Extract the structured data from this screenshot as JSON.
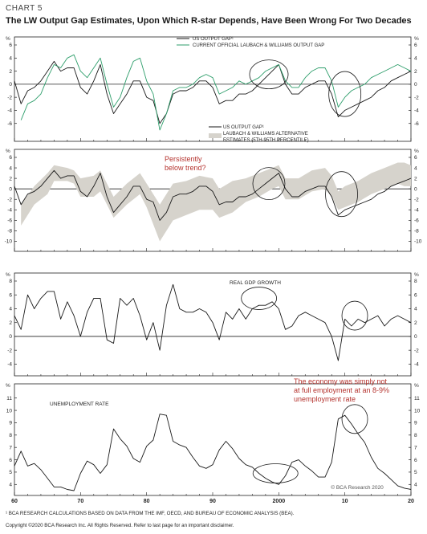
{
  "header": {
    "chart_label": "CHART 5",
    "title": "The LW Output Gap Estimates, Upon Which R-star Depends, Have Been Wrong For Two Decades"
  },
  "footer": {
    "footnote": "¹ BCA RESEARCH CALCULATIONS BASED ON DATA FROM THE IMF, OECD, AND BUREAU OF ECONOMIC ANALYSIS (BEA).",
    "copyright": "Copyright ©2020 BCA Research Inc. All Rights Reserved. Refer to last page for an important disclaimer.",
    "watermark": "© BCA Research 2020"
  },
  "colors": {
    "black_line": "#1a1a1a",
    "green_line": "#2e9e6b",
    "band_fill": "#d6d3cc",
    "annotation_red": "#b5332e",
    "axis": "#222222"
  },
  "chart_data": [
    {
      "type": "line",
      "unit": "%",
      "ylim": [
        -8,
        6
      ],
      "yticks": [
        6,
        4,
        2,
        0,
        -2,
        -4,
        -6
      ],
      "xlim": [
        1960,
        2020
      ],
      "legend": [
        {
          "label": "US OUTPUT GAP¹",
          "color": "#1a1a1a"
        },
        {
          "label": "CURRENT OFFICIAL LAUBACH & WILLIAMS OUTPUT GAP",
          "color": "#2e9e6b"
        }
      ],
      "series": [
        {
          "name": "US OUTPUT GAP¹",
          "color": "#1a1a1a",
          "x": [
            1960,
            1961,
            1962,
            1963,
            1964,
            1965,
            1966,
            1967,
            1968,
            1969,
            1970,
            1971,
            1972,
            1973,
            1974,
            1975,
            1976,
            1977,
            1978,
            1979,
            1980,
            1981,
            1982,
            1983,
            1984,
            1985,
            1986,
            1987,
            1988,
            1989,
            1990,
            1991,
            1992,
            1993,
            1994,
            1995,
            1996,
            1997,
            1998,
            1999,
            2000,
            2001,
            2002,
            2003,
            2004,
            2005,
            2006,
            2007,
            2008,
            2009,
            2010,
            2011,
            2012,
            2013,
            2014,
            2015,
            2016,
            2017,
            2018,
            2019,
            2020
          ],
          "y": [
            0.5,
            -3.0,
            -1.0,
            -0.5,
            0.5,
            2.0,
            3.5,
            2.0,
            2.5,
            2.5,
            -0.5,
            -1.5,
            0.5,
            3.0,
            -1.5,
            -4.5,
            -3.0,
            -1.5,
            0.5,
            0.5,
            -2.0,
            -2.5,
            -6.0,
            -4.5,
            -1.5,
            -1.0,
            -1.0,
            -0.5,
            0.5,
            0.5,
            -0.5,
            -3.0,
            -2.5,
            -2.5,
            -1.5,
            -1.5,
            -1.0,
            0.0,
            1.0,
            2.0,
            3.0,
            0.0,
            -1.5,
            -1.5,
            -0.5,
            0.0,
            0.5,
            0.5,
            -1.5,
            -5.0,
            -4.0,
            -3.5,
            -3.0,
            -2.5,
            -2.0,
            -1.0,
            -0.5,
            0.5,
            1.0,
            1.5,
            2.0
          ]
        },
        {
          "name": "CURRENT OFFICIAL LAUBACH & WILLIAMS OUTPUT GAP",
          "color": "#2e9e6b",
          "x": [
            1961,
            1962,
            1963,
            1964,
            1965,
            1966,
            1967,
            1968,
            1969,
            1970,
            1971,
            1972,
            1973,
            1974,
            1975,
            1976,
            1977,
            1978,
            1979,
            1980,
            1981,
            1982,
            1983,
            1984,
            1985,
            1986,
            1987,
            1988,
            1989,
            1990,
            1991,
            1992,
            1993,
            1994,
            1995,
            1996,
            1997,
            1998,
            1999,
            2000,
            2001,
            2002,
            2003,
            2004,
            2005,
            2006,
            2007,
            2008,
            2009,
            2010,
            2011,
            2012,
            2013,
            2014,
            2015,
            2016,
            2017,
            2018,
            2019,
            2020
          ],
          "y": [
            -5.5,
            -3.0,
            -2.5,
            -1.5,
            1.0,
            3.0,
            2.5,
            4.0,
            4.5,
            2.0,
            1.0,
            2.5,
            4.0,
            0.0,
            -3.5,
            -2.0,
            1.0,
            3.5,
            4.0,
            0.5,
            -1.5,
            -7.0,
            -4.5,
            -1.0,
            -0.5,
            -0.5,
            0.0,
            1.0,
            1.5,
            1.0,
            -1.5,
            -1.0,
            -0.5,
            0.5,
            0.0,
            0.5,
            1.0,
            2.0,
            2.5,
            3.0,
            0.5,
            -0.5,
            -0.5,
            1.0,
            2.0,
            2.5,
            2.5,
            0.5,
            -3.5,
            -2.0,
            -1.0,
            -0.5,
            0.0,
            1.0,
            1.5,
            2.0,
            2.5,
            3.0,
            2.5,
            2.0
          ]
        }
      ],
      "annotation_circles": [
        {
          "x": 1998.5,
          "y": 1.5
        },
        {
          "x": 2010,
          "y": -1.5
        }
      ]
    },
    {
      "type": "area",
      "unit": "%",
      "ylim": [
        -11,
        6
      ],
      "yticks": [
        6,
        4,
        2,
        0,
        -2,
        -4,
        -6,
        -8,
        -10
      ],
      "xlim": [
        1960,
        2020
      ],
      "legend": [
        {
          "label": "US OUTPUT GAP¹",
          "color": "#1a1a1a"
        },
        {
          "label": "LAUBACH & WILLIAMS ALTERNATIVE",
          "color": "#d6d3cc"
        },
        {
          "label": "ESTIMATES (5TH-95TH PERCENTILE)",
          "color": "#d6d3cc"
        }
      ],
      "annotation_text": [
        "Persistently",
        "below trend?"
      ],
      "band": {
        "x": [
          1961,
          1963,
          1965,
          1966,
          1968,
          1969,
          1970,
          1972,
          1973,
          1974,
          1975,
          1977,
          1979,
          1980,
          1982,
          1984,
          1986,
          1988,
          1990,
          1991,
          1993,
          1995,
          1997,
          1999,
          2000,
          2001,
          2003,
          2005,
          2007,
          2008,
          2009,
          2010,
          2012,
          2014,
          2016,
          2018,
          2019,
          2020
        ],
        "lower": [
          -7.0,
          -3.0,
          -1.0,
          1.5,
          1.5,
          1.0,
          -1.5,
          -1.5,
          -0.5,
          -3.0,
          -5.5,
          -3.0,
          -1.0,
          -3.5,
          -10.0,
          -6.0,
          -5.0,
          -4.0,
          -4.0,
          -5.5,
          -4.5,
          -2.5,
          -1.5,
          0.0,
          0.5,
          -2.0,
          -2.0,
          -0.5,
          0.0,
          -1.5,
          -4.0,
          -3.5,
          -2.5,
          -1.0,
          0.0,
          1.0,
          0.5,
          0.5
        ],
        "upper": [
          -3.0,
          0.5,
          3.0,
          4.5,
          4.0,
          3.5,
          2.0,
          2.5,
          3.5,
          1.0,
          -1.5,
          1.0,
          3.0,
          1.0,
          -3.0,
          1.0,
          1.5,
          2.5,
          2.0,
          0.0,
          1.5,
          2.0,
          3.0,
          4.0,
          4.5,
          2.0,
          2.0,
          3.5,
          4.0,
          2.5,
          -0.5,
          0.5,
          1.5,
          3.0,
          4.0,
          5.0,
          5.0,
          4.5
        ]
      },
      "series": [
        {
          "name": "US OUTPUT GAP¹",
          "color": "#1a1a1a",
          "x": [
            1960,
            1961,
            1962,
            1963,
            1964,
            1965,
            1966,
            1967,
            1968,
            1969,
            1970,
            1971,
            1972,
            1973,
            1974,
            1975,
            1976,
            1977,
            1978,
            1979,
            1980,
            1981,
            1982,
            1983,
            1984,
            1985,
            1986,
            1987,
            1988,
            1989,
            1990,
            1991,
            1992,
            1993,
            1994,
            1995,
            1996,
            1997,
            1998,
            1999,
            2000,
            2001,
            2002,
            2003,
            2004,
            2005,
            2006,
            2007,
            2008,
            2009,
            2010,
            2011,
            2012,
            2013,
            2014,
            2015,
            2016,
            2017,
            2018,
            2019,
            2020
          ],
          "y": [
            0.5,
            -3.0,
            -1.0,
            -0.5,
            0.5,
            2.0,
            3.5,
            2.0,
            2.5,
            2.5,
            -0.5,
            -1.5,
            0.5,
            3.0,
            -1.5,
            -4.5,
            -3.0,
            -1.5,
            0.5,
            0.5,
            -2.0,
            -2.5,
            -6.0,
            -4.5,
            -1.5,
            -1.0,
            -1.0,
            -0.5,
            0.5,
            0.5,
            -0.5,
            -3.0,
            -2.5,
            -2.5,
            -1.5,
            -1.5,
            -1.0,
            0.0,
            1.0,
            2.0,
            3.0,
            0.0,
            -1.5,
            -1.5,
            -0.5,
            0.0,
            0.5,
            0.5,
            -1.5,
            -5.0,
            -4.0,
            -3.5,
            -3.0,
            -2.5,
            -2.0,
            -1.0,
            -0.5,
            0.5,
            1.0,
            1.5,
            2.0
          ]
        }
      ],
      "annotation_circles": [
        {
          "x": 1998.5,
          "y": 1.0
        },
        {
          "x": 2009.5,
          "y": -1.0
        }
      ]
    },
    {
      "type": "line",
      "unit": "%",
      "ylim": [
        -5,
        8
      ],
      "yticks": [
        8,
        6,
        4,
        2,
        0,
        -2,
        -4
      ],
      "xlim": [
        1960,
        2020
      ],
      "series_label": "REAL GDP GROWTH",
      "series": [
        {
          "name": "REAL GDP GROWTH",
          "color": "#1a1a1a",
          "x": [
            1960,
            1961,
            1962,
            1963,
            1964,
            1965,
            1966,
            1967,
            1968,
            1969,
            1970,
            1971,
            1972,
            1973,
            1974,
            1975,
            1976,
            1977,
            1978,
            1979,
            1980,
            1981,
            1982,
            1983,
            1984,
            1985,
            1986,
            1987,
            1988,
            1989,
            1990,
            1991,
            1992,
            1993,
            1994,
            1995,
            1996,
            1997,
            1998,
            1999,
            2000,
            2001,
            2002,
            2003,
            2004,
            2005,
            2006,
            2007,
            2008,
            2009,
            2010,
            2011,
            2012,
            2013,
            2014,
            2015,
            2016,
            2017,
            2018,
            2019,
            2020
          ],
          "y": [
            3.0,
            1.0,
            6.0,
            4.0,
            5.5,
            6.5,
            6.5,
            2.5,
            5.0,
            3.0,
            0.0,
            3.5,
            5.5,
            5.5,
            -0.5,
            -1.0,
            5.5,
            4.5,
            5.5,
            3.0,
            -0.5,
            2.0,
            -2.0,
            4.5,
            7.5,
            4.0,
            3.5,
            3.5,
            4.0,
            3.5,
            2.0,
            -0.5,
            3.5,
            2.5,
            4.0,
            2.5,
            4.0,
            4.5,
            4.5,
            5.0,
            4.0,
            1.0,
            1.5,
            3.0,
            3.5,
            3.0,
            2.5,
            2.0,
            0.0,
            -3.5,
            2.5,
            1.5,
            2.5,
            2.0,
            2.5,
            3.0,
            1.5,
            2.5,
            3.0,
            2.5,
            2.0
          ]
        }
      ],
      "annotation_circles": [
        {
          "x": 1997,
          "y": 5.5
        },
        {
          "x": 2011.5,
          "y": 3.0
        }
      ]
    },
    {
      "type": "line",
      "unit": "%",
      "ylim": [
        3.5,
        11.5
      ],
      "yticks": [
        11,
        10,
        9,
        8,
        7,
        6,
        5,
        4
      ],
      "xlim": [
        1960,
        2020
      ],
      "xticks": [
        1960,
        1970,
        1980,
        1990,
        2000,
        2010,
        2020
      ],
      "xticklabels": [
        "60",
        "70",
        "80",
        "90",
        "2000",
        "10",
        "20"
      ],
      "series_label": "UNEMPLOYMENT RATE",
      "annotation_text": [
        "The economy was simply not",
        "at full employment at an 8-9%",
        "unemployment rate"
      ],
      "series": [
        {
          "name": "UNEMPLOYMENT RATE",
          "color": "#1a1a1a",
          "x": [
            1960,
            1961,
            1962,
            1963,
            1964,
            1965,
            1966,
            1967,
            1968,
            1969,
            1970,
            1971,
            1972,
            1973,
            1974,
            1975,
            1976,
            1977,
            1978,
            1979,
            1980,
            1981,
            1982,
            1983,
            1984,
            1985,
            1986,
            1987,
            1988,
            1989,
            1990,
            1991,
            1992,
            1993,
            1994,
            1995,
            1996,
            1997,
            1998,
            1999,
            2000,
            2001,
            2002,
            2003,
            2004,
            2005,
            2006,
            2007,
            2008,
            2009,
            2010,
            2011,
            2012,
            2013,
            2014,
            2015,
            2016,
            2017,
            2018,
            2019,
            2020
          ],
          "y": [
            5.5,
            6.7,
            5.5,
            5.7,
            5.2,
            4.5,
            3.8,
            3.8,
            3.6,
            3.5,
            4.9,
            5.9,
            5.6,
            4.9,
            5.6,
            8.5,
            7.7,
            7.1,
            6.1,
            5.8,
            7.1,
            7.6,
            9.7,
            9.6,
            7.5,
            7.2,
            7.0,
            6.2,
            5.5,
            5.3,
            5.6,
            6.8,
            7.5,
            6.9,
            6.1,
            5.6,
            5.4,
            4.9,
            4.5,
            4.2,
            4.0,
            4.7,
            5.8,
            6.0,
            5.5,
            5.1,
            4.6,
            4.6,
            5.8,
            9.3,
            9.6,
            8.9,
            8.1,
            7.4,
            6.2,
            5.3,
            4.9,
            4.4,
            3.9,
            3.7,
            3.6
          ]
        }
      ],
      "annotation_circles": [
        {
          "x": 1999.5,
          "y": 4.9
        },
        {
          "x": 2011.5,
          "y": 9.3
        }
      ]
    }
  ]
}
